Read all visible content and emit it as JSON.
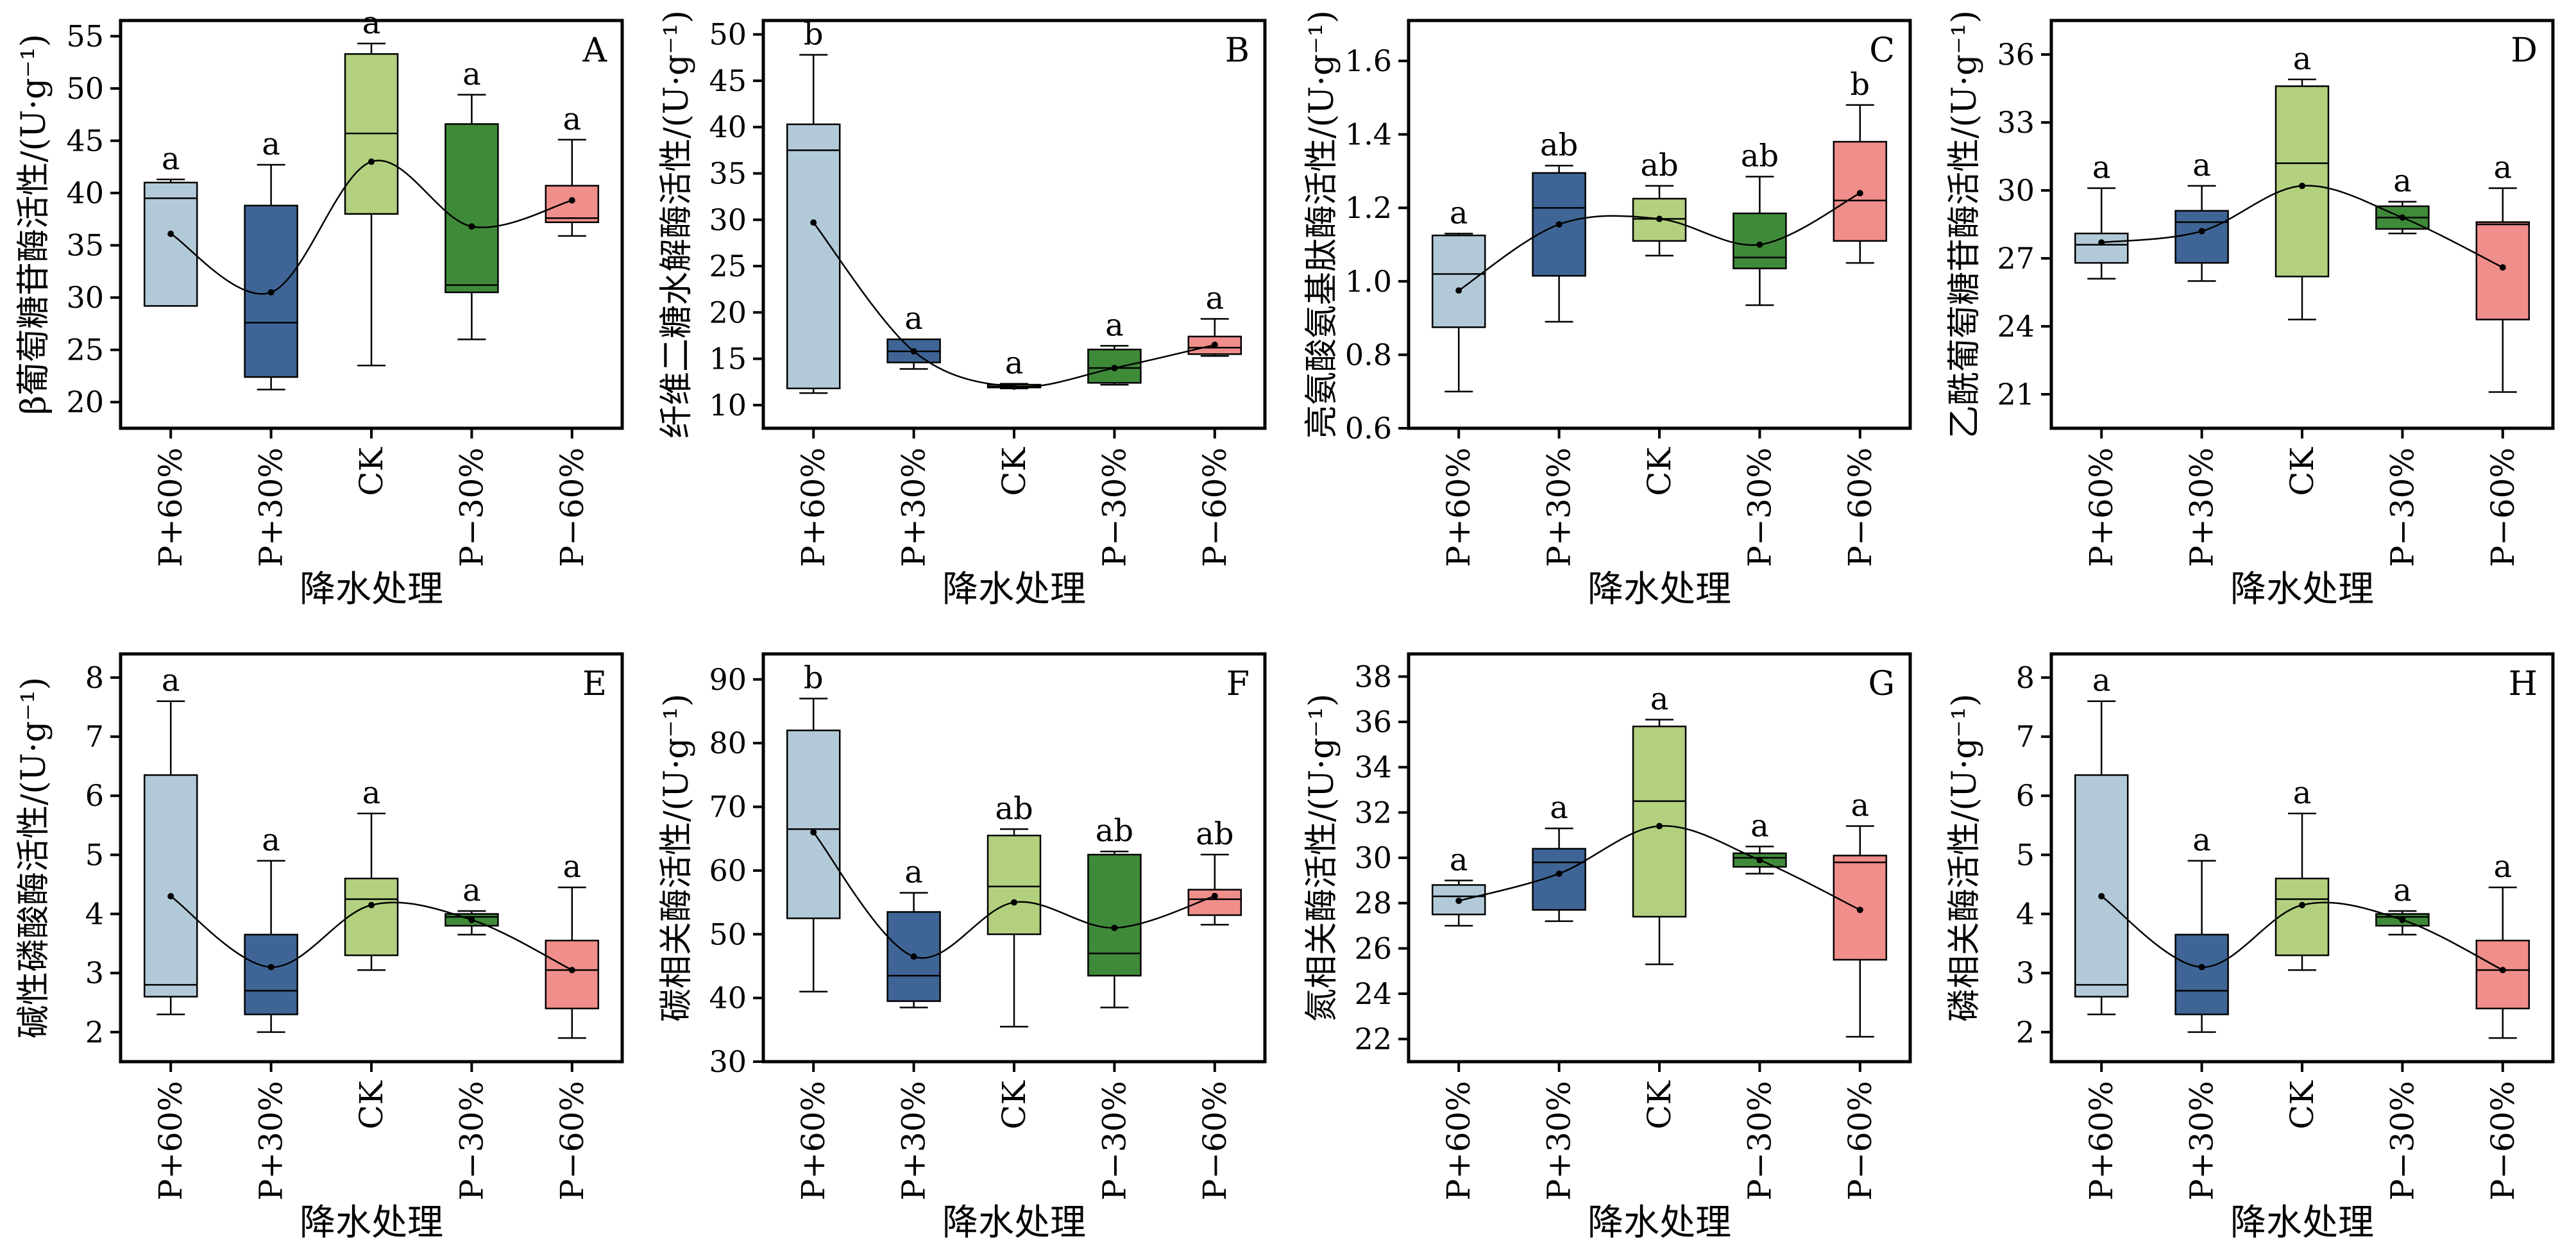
{
  "chart_data": [
    {
      "type": "box",
      "panel_label": "A",
      "ylabel": "β葡萄糖苷酶活性/(U·g⁻¹)",
      "xlabel": "降水处理",
      "categories": [
        "P+60%",
        "P+30%",
        "CK",
        "P−30%",
        "P−60%"
      ],
      "ylim": [
        17.5,
        56.5
      ],
      "yticks": [
        20,
        25,
        30,
        35,
        40,
        45,
        50,
        55
      ],
      "boxes": [
        {
          "min": 29.2,
          "q1": 29.2,
          "median": 39.5,
          "q3": 41.0,
          "max": 41.3,
          "mean": 36.1,
          "letter": "a"
        },
        {
          "min": 21.2,
          "q1": 22.4,
          "median": 27.6,
          "q3": 38.8,
          "max": 42.7,
          "mean": 30.5,
          "letter": "a"
        },
        {
          "min": 23.5,
          "q1": 38.0,
          "median": 45.7,
          "q3": 53.3,
          "max": 54.3,
          "mean": 43.0,
          "letter": "a"
        },
        {
          "min": 26.0,
          "q1": 30.5,
          "median": 31.2,
          "q3": 46.6,
          "max": 49.4,
          "mean": 36.8,
          "letter": "a"
        },
        {
          "min": 35.9,
          "q1": 37.2,
          "median": 37.6,
          "q3": 40.7,
          "max": 45.1,
          "mean": 39.3,
          "letter": "a"
        }
      ]
    },
    {
      "type": "box",
      "panel_label": "B",
      "ylabel": "纤维二糖水解酶活性/(U·g⁻¹)",
      "xlabel": "降水处理",
      "categories": [
        "P+60%",
        "P+30%",
        "CK",
        "P−30%",
        "P−60%"
      ],
      "ylim": [
        7.5,
        51.5
      ],
      "yticks": [
        10,
        15,
        20,
        25,
        30,
        35,
        40,
        45,
        50
      ],
      "boxes": [
        {
          "min": 11.3,
          "q1": 11.8,
          "median": 37.5,
          "q3": 40.3,
          "max": 47.8,
          "mean": 29.7,
          "letter": "b"
        },
        {
          "min": 13.9,
          "q1": 14.6,
          "median": 15.8,
          "q3": 17.1,
          "max": 17.1,
          "mean": 15.8,
          "letter": "a"
        },
        {
          "min": 11.8,
          "q1": 11.9,
          "median": 12.0,
          "q3": 12.2,
          "max": 12.3,
          "mean": 12.0,
          "letter": "a"
        },
        {
          "min": 12.2,
          "q1": 12.4,
          "median": 14.0,
          "q3": 16.0,
          "max": 16.4,
          "mean": 14.0,
          "letter": "a"
        },
        {
          "min": 15.3,
          "q1": 15.5,
          "median": 16.2,
          "q3": 17.4,
          "max": 19.3,
          "mean": 16.5,
          "letter": "a"
        }
      ]
    },
    {
      "type": "box",
      "panel_label": "C",
      "ylabel": "亮氨酸氨基肽酶活性/(U·g⁻¹)",
      "xlabel": "降水处理",
      "categories": [
        "P+60%",
        "P+30%",
        "CK",
        "P−30%",
        "P−60%"
      ],
      "ylim": [
        0.6,
        1.71
      ],
      "yticks": [
        0.6,
        0.8,
        1.0,
        1.2,
        1.4,
        1.6
      ],
      "boxes": [
        {
          "min": 0.7,
          "q1": 0.875,
          "median": 1.02,
          "q3": 1.125,
          "max": 1.13,
          "mean": 0.975,
          "letter": "a"
        },
        {
          "min": 0.89,
          "q1": 1.015,
          "median": 1.2,
          "q3": 1.295,
          "max": 1.315,
          "mean": 1.155,
          "letter": "ab"
        },
        {
          "min": 1.07,
          "q1": 1.11,
          "median": 1.17,
          "q3": 1.225,
          "max": 1.26,
          "mean": 1.17,
          "letter": "ab"
        },
        {
          "min": 0.935,
          "q1": 1.035,
          "median": 1.065,
          "q3": 1.185,
          "max": 1.285,
          "mean": 1.1,
          "letter": "ab"
        },
        {
          "min": 1.05,
          "q1": 1.11,
          "median": 1.22,
          "q3": 1.38,
          "max": 1.48,
          "mean": 1.24,
          "letter": "b"
        }
      ]
    },
    {
      "type": "box",
      "panel_label": "D",
      "ylabel": "乙酰葡萄糖苷酶活性/(U·g⁻¹)",
      "xlabel": "降水处理",
      "categories": [
        "P+60%",
        "P+30%",
        "CK",
        "P−30%",
        "P−60%"
      ],
      "ylim": [
        19.5,
        37.5
      ],
      "yticks": [
        21,
        24,
        27,
        30,
        33,
        36
      ],
      "boxes": [
        {
          "min": 26.1,
          "q1": 26.8,
          "median": 27.6,
          "q3": 28.1,
          "max": 30.1,
          "mean": 27.7,
          "letter": "a"
        },
        {
          "min": 26.0,
          "q1": 26.8,
          "median": 28.6,
          "q3": 29.1,
          "max": 30.2,
          "mean": 28.2,
          "letter": "a"
        },
        {
          "min": 24.3,
          "q1": 26.2,
          "median": 31.2,
          "q3": 34.6,
          "max": 34.9,
          "mean": 30.2,
          "letter": "a"
        },
        {
          "min": 28.1,
          "q1": 28.3,
          "median": 28.8,
          "q3": 29.3,
          "max": 29.5,
          "mean": 28.8,
          "letter": "a"
        },
        {
          "min": 21.1,
          "q1": 24.3,
          "median": 28.5,
          "q3": 28.6,
          "max": 30.1,
          "mean": 26.6,
          "letter": "a"
        }
      ]
    },
    {
      "type": "box",
      "panel_label": "E",
      "ylabel": "碱性磷酸酶活性/(U·g⁻¹)",
      "xlabel": "降水处理",
      "categories": [
        "P+60%",
        "P+30%",
        "CK",
        "P−30%",
        "P−60%"
      ],
      "ylim": [
        1.5,
        8.4
      ],
      "yticks": [
        2,
        3,
        4,
        5,
        6,
        7,
        8
      ],
      "boxes": [
        {
          "min": 2.3,
          "q1": 2.6,
          "median": 2.8,
          "q3": 6.35,
          "max": 7.6,
          "mean": 4.3,
          "letter": "a"
        },
        {
          "min": 2.0,
          "q1": 2.3,
          "median": 2.7,
          "q3": 3.65,
          "max": 4.9,
          "mean": 3.1,
          "letter": "a"
        },
        {
          "min": 3.05,
          "q1": 3.3,
          "median": 4.25,
          "q3": 4.6,
          "max": 5.7,
          "mean": 4.15,
          "letter": "a"
        },
        {
          "min": 3.65,
          "q1": 3.8,
          "median": 3.95,
          "q3": 4.0,
          "max": 4.05,
          "mean": 3.9,
          "letter": "a"
        },
        {
          "min": 1.9,
          "q1": 2.4,
          "median": 3.05,
          "q3": 3.55,
          "max": 4.45,
          "mean": 3.05,
          "letter": "a"
        }
      ]
    },
    {
      "type": "box",
      "panel_label": "F",
      "ylabel": "碳相关酶活性/(U·g⁻¹)",
      "xlabel": "降水处理",
      "categories": [
        "P+60%",
        "P+30%",
        "CK",
        "P−30%",
        "P−60%"
      ],
      "ylim": [
        30,
        94
      ],
      "yticks": [
        30,
        40,
        50,
        60,
        70,
        80,
        90
      ],
      "boxes": [
        {
          "min": 41.0,
          "q1": 52.5,
          "median": 66.5,
          "q3": 82.0,
          "max": 87.0,
          "mean": 66.0,
          "letter": "b"
        },
        {
          "min": 38.5,
          "q1": 39.5,
          "median": 43.5,
          "q3": 53.5,
          "max": 56.5,
          "mean": 46.5,
          "letter": "a"
        },
        {
          "min": 35.5,
          "q1": 50.0,
          "median": 57.5,
          "q3": 65.5,
          "max": 66.5,
          "mean": 55.0,
          "letter": "ab"
        },
        {
          "min": 38.5,
          "q1": 43.5,
          "median": 47.0,
          "q3": 62.5,
          "max": 63.0,
          "mean": 51.0,
          "letter": "ab"
        },
        {
          "min": 51.5,
          "q1": 53.0,
          "median": 55.5,
          "q3": 57.0,
          "max": 62.5,
          "mean": 56.0,
          "letter": "ab"
        }
      ]
    },
    {
      "type": "box",
      "panel_label": "G",
      "ylabel": "氮相关酶活性/(U·g⁻¹)",
      "xlabel": "降水处理",
      "categories": [
        "P+60%",
        "P+30%",
        "CK",
        "P−30%",
        "P−60%"
      ],
      "ylim": [
        21,
        39
      ],
      "yticks": [
        22,
        24,
        26,
        28,
        30,
        32,
        34,
        36,
        38
      ],
      "boxes": [
        {
          "min": 27.0,
          "q1": 27.5,
          "median": 28.3,
          "q3": 28.8,
          "max": 29.0,
          "mean": 28.1,
          "letter": "a"
        },
        {
          "min": 27.2,
          "q1": 27.7,
          "median": 29.8,
          "q3": 30.4,
          "max": 31.3,
          "mean": 29.3,
          "letter": "a"
        },
        {
          "min": 25.3,
          "q1": 27.4,
          "median": 32.5,
          "q3": 35.8,
          "max": 36.1,
          "mean": 31.4,
          "letter": "a"
        },
        {
          "min": 29.3,
          "q1": 29.6,
          "median": 30.0,
          "q3": 30.2,
          "max": 30.5,
          "mean": 29.9,
          "letter": "a"
        },
        {
          "min": 22.1,
          "q1": 25.5,
          "median": 29.8,
          "q3": 30.1,
          "max": 31.4,
          "mean": 27.7,
          "letter": "a"
        }
      ]
    },
    {
      "type": "box",
      "panel_label": "H",
      "ylabel": "磷相关酶活性/(U·g⁻¹)",
      "xlabel": "降水处理",
      "categories": [
        "P+60%",
        "P+30%",
        "CK",
        "P−30%",
        "P−60%"
      ],
      "ylim": [
        1.5,
        8.4
      ],
      "yticks": [
        2,
        3,
        4,
        5,
        6,
        7,
        8
      ],
      "boxes": [
        {
          "min": 2.3,
          "q1": 2.6,
          "median": 2.8,
          "q3": 6.35,
          "max": 7.6,
          "mean": 4.3,
          "letter": "a"
        },
        {
          "min": 2.0,
          "q1": 2.3,
          "median": 2.7,
          "q3": 3.65,
          "max": 4.9,
          "mean": 3.1,
          "letter": "a"
        },
        {
          "min": 3.05,
          "q1": 3.3,
          "median": 4.25,
          "q3": 4.6,
          "max": 5.7,
          "mean": 4.15,
          "letter": "a"
        },
        {
          "min": 3.65,
          "q1": 3.8,
          "median": 3.95,
          "q3": 4.0,
          "max": 4.05,
          "mean": 3.9,
          "letter": "a"
        },
        {
          "min": 1.9,
          "q1": 2.4,
          "median": 3.05,
          "q3": 3.55,
          "max": 4.45,
          "mean": 3.05,
          "letter": "a"
        }
      ]
    }
  ],
  "colors": {
    "box_fills": [
      "#b2cad8",
      "#3f6596",
      "#b3d07f",
      "#3f8a39",
      "#ef8e8b"
    ],
    "axis": "#000000",
    "mean_line": "#000000"
  }
}
